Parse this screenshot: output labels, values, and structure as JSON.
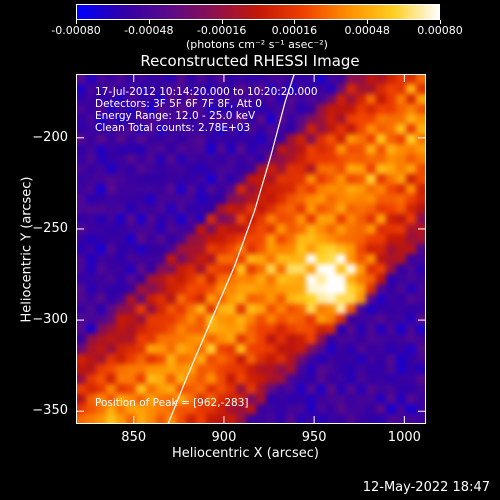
{
  "chart_data": {
    "type": "heatmap",
    "title": "Reconstructed RHESSI Image",
    "xlabel": "Heliocentric X (arcsec)",
    "ylabel": "Heliocentric Y (arcsec)",
    "xlim": [
      818,
      1012
    ],
    "ylim": [
      -357,
      -165
    ],
    "x_ticks": [
      850,
      900,
      950,
      1000
    ],
    "y_ticks": [
      -200,
      -250,
      -300,
      -350
    ],
    "colorbar": {
      "range": [
        -0.0008,
        0.0008
      ],
      "tick_labels": [
        "-0.00080",
        "-0.00048",
        "-0.00016",
        "0.00016",
        "0.00048",
        "0.00080"
      ],
      "tick_values": [
        -0.0008,
        -0.00048,
        -0.00016,
        0.00016,
        0.00048,
        0.0008
      ],
      "units_label": "(photons cm⁻² s⁻¹ asec⁻²)",
      "colors": [
        "#0000ff",
        "#3000a8",
        "#5a0a8c",
        "#8c1050",
        "#c41808",
        "#f04000",
        "#ff9000",
        "#ffd020",
        "#ffffff"
      ]
    },
    "info_lines": [
      "17-Jul-2012 10:14:20.000 to 10:20:20.000",
      "Detectors: 3F 5F 6F 7F 8F, Att 0",
      "Energy Range: 12.0 - 25.0 keV",
      "Clean    Total counts: 2.78E+03"
    ],
    "peak_label": "Position of Peak = [962,-283]",
    "peak": [
      962,
      -283
    ],
    "limb_curve": [
      [
        869,
        -357
      ],
      [
        880,
        -330
      ],
      [
        893,
        -300
      ],
      [
        906,
        -270
      ],
      [
        917,
        -240
      ],
      [
        926,
        -210
      ],
      [
        934,
        -180
      ],
      [
        939,
        -165
      ]
    ]
  },
  "timestamp": "12-May-2022 18:47"
}
